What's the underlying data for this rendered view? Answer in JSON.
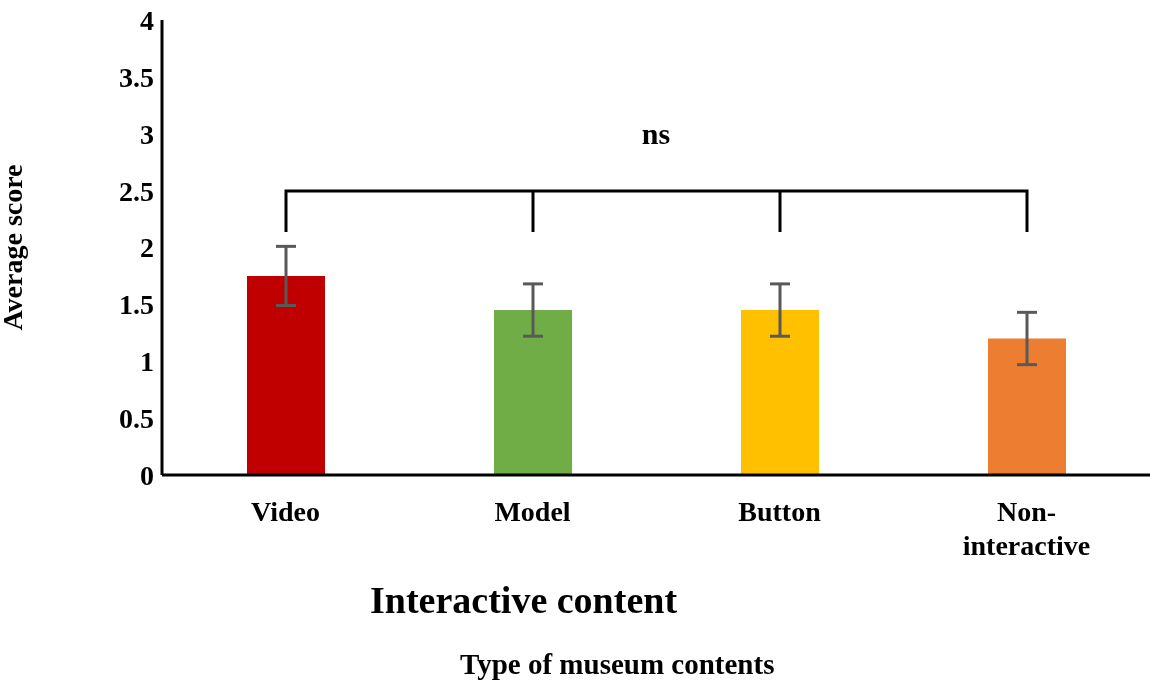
{
  "chart_data": {
    "type": "bar",
    "xlabel": "Type of museum contents",
    "ylabel": "Average score",
    "categories": [
      "Video",
      "Model",
      "Button",
      "Non-interactive"
    ],
    "values": [
      1.75,
      1.45,
      1.45,
      1.2
    ],
    "errors": [
      0.26,
      0.23,
      0.23,
      0.23
    ],
    "colors": [
      "#c00000",
      "#70ad47",
      "#ffc000",
      "#ed7d31"
    ],
    "ylim": [
      0,
      4
    ],
    "yticks": [
      0,
      0.5,
      1,
      1.5,
      2,
      2.5,
      3,
      3.5,
      4
    ],
    "grid": false,
    "annotations": [
      "ns",
      "Interactive content"
    ]
  }
}
